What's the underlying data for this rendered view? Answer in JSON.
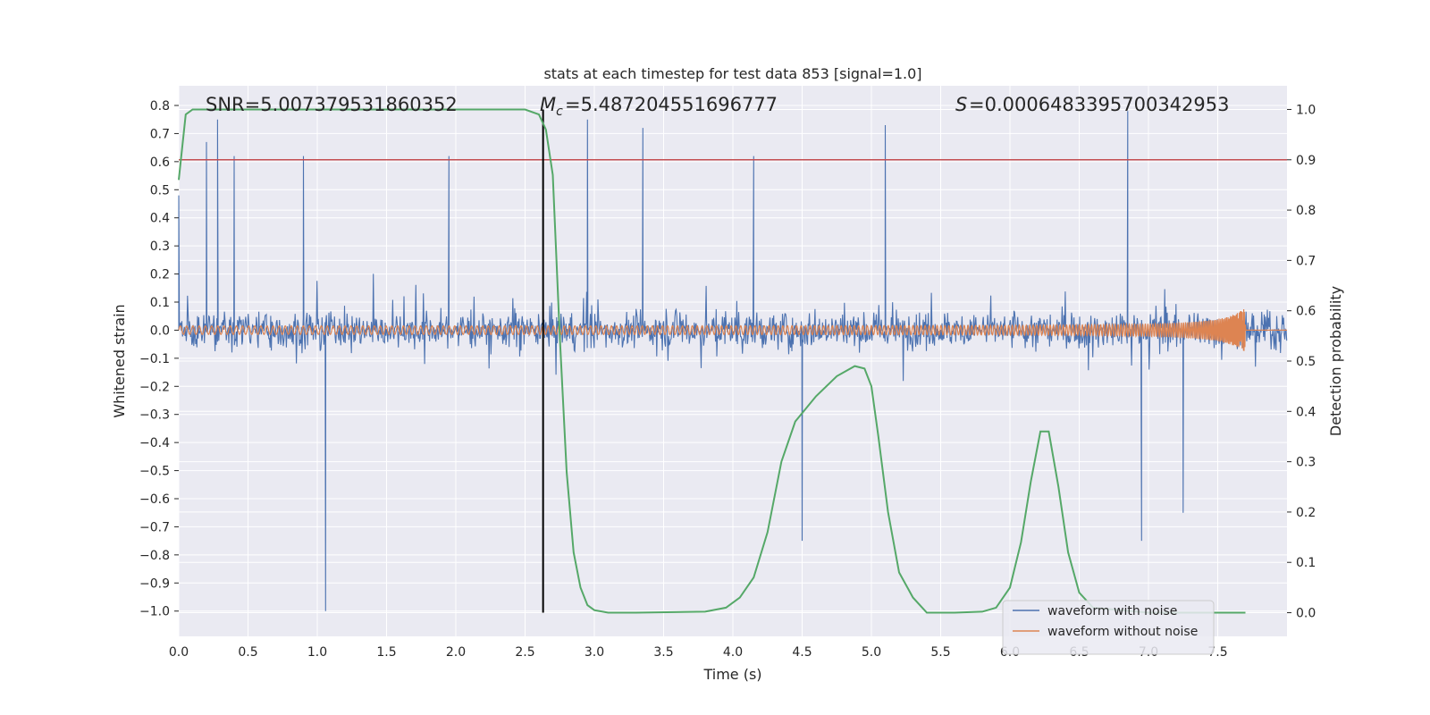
{
  "chart_data": {
    "type": "line",
    "title": "stats at each timestep for test data 853 [signal=1.0]",
    "xlabel": "Time (s)",
    "ylabel": "Whitened strain",
    "y2label": "Detection probability",
    "xlim": [
      0.0,
      8.0
    ],
    "ylim": [
      -1.09,
      0.87
    ],
    "y2lim": [
      -0.047,
      1.047
    ],
    "x_ticks": [
      "0.0",
      "0.5",
      "1.0",
      "1.5",
      "2.0",
      "2.5",
      "3.0",
      "3.5",
      "4.0",
      "4.5",
      "5.0",
      "5.5",
      "6.0",
      "6.5",
      "7.0",
      "7.5"
    ],
    "y_ticks": [
      "0.8",
      "0.7",
      "0.6",
      "0.5",
      "0.4",
      "0.3",
      "0.2",
      "0.1",
      "0.0",
      "−0.1",
      "−0.2",
      "−0.3",
      "−0.4",
      "−0.5",
      "−0.6",
      "−0.7",
      "−0.8",
      "−0.9",
      "−1.0"
    ],
    "y2_ticks": [
      "1.0",
      "0.9",
      "0.8",
      "0.7",
      "0.6",
      "0.5",
      "0.4",
      "0.3",
      "0.2",
      "0.1",
      "0.0"
    ],
    "grid": true,
    "legend_position": "lower-right",
    "background_color": "#eaeaf2",
    "annotations": {
      "snr": "SNR=5.007379531860352",
      "mc": "=5.487204551696777",
      "s": "=0.0006483395700342953"
    },
    "threshold_prob": 0.9,
    "merger_time": 2.63,
    "series": [
      {
        "name": "waveform with noise",
        "color": "#4c72b0",
        "description_values": "noise envelope approx within [-1.0, 0.78]",
        "peaks": [
          [
            0.0,
            0.48
          ],
          [
            0.2,
            0.67
          ],
          [
            0.28,
            0.75
          ],
          [
            0.4,
            0.62
          ],
          [
            0.9,
            0.62
          ],
          [
            1.06,
            -1.0
          ],
          [
            1.95,
            0.62
          ],
          [
            2.95,
            0.75
          ],
          [
            3.35,
            0.72
          ],
          [
            4.15,
            0.62
          ],
          [
            4.5,
            -0.75
          ],
          [
            5.1,
            0.73
          ],
          [
            6.85,
            0.78
          ],
          [
            6.95,
            -0.75
          ],
          [
            7.25,
            -0.65
          ]
        ]
      },
      {
        "name": "waveform without noise",
        "color": "#dd8452",
        "chirp_end_time": 7.7,
        "amplitude_start": 0.015,
        "amplitude_peak": 0.08
      },
      {
        "name": "detection probability",
        "color": "#55a868",
        "axis": "right",
        "x": [
          0.0,
          0.05,
          0.1,
          0.5,
          1.0,
          2.0,
          2.5,
          2.6,
          2.65,
          2.7,
          2.75,
          2.8,
          2.85,
          2.9,
          2.95,
          3.0,
          3.1,
          3.3,
          3.8,
          3.95,
          4.05,
          4.15,
          4.25,
          4.35,
          4.45,
          4.6,
          4.75,
          4.88,
          4.95,
          5.0,
          5.05,
          5.12,
          5.2,
          5.3,
          5.4,
          5.6,
          5.8,
          5.9,
          6.0,
          6.08,
          6.15,
          6.22,
          6.28,
          6.35,
          6.42,
          6.5,
          6.6,
          7.0,
          7.7
        ],
        "y": [
          0.86,
          0.99,
          1.0,
          1.0,
          1.0,
          1.0,
          1.0,
          0.99,
          0.96,
          0.87,
          0.55,
          0.28,
          0.12,
          0.05,
          0.015,
          0.005,
          0.0,
          0.0,
          0.002,
          0.01,
          0.03,
          0.07,
          0.16,
          0.3,
          0.38,
          0.43,
          0.47,
          0.49,
          0.485,
          0.45,
          0.35,
          0.2,
          0.08,
          0.03,
          0.0,
          0.0,
          0.002,
          0.01,
          0.05,
          0.14,
          0.26,
          0.36,
          0.36,
          0.25,
          0.12,
          0.04,
          0.01,
          0.0,
          0.0
        ]
      }
    ]
  }
}
